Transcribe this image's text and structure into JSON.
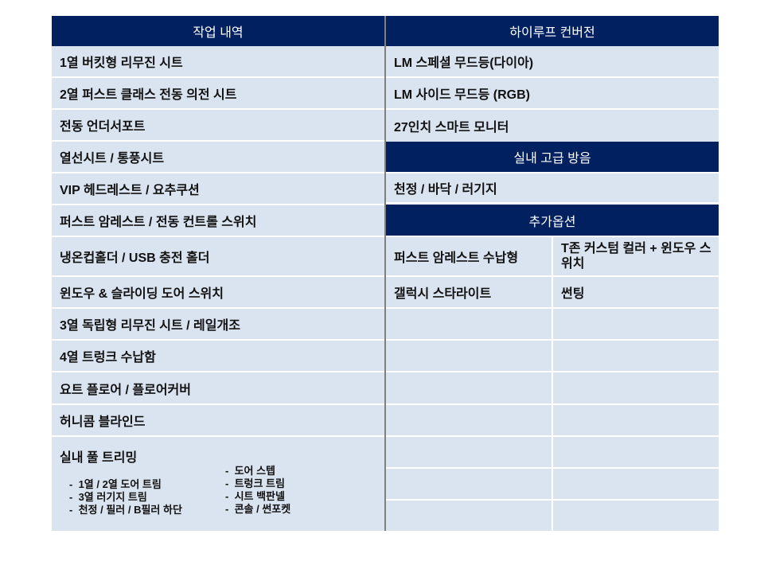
{
  "left": {
    "header": "작업 내역",
    "items": [
      "1열 버킷형 리무진 시트",
      "2열 퍼스트 클래스 전동 의전 시트",
      "전동 언더서포트",
      "열선시트 / 통풍시트",
      "VIP 헤드레스트 / 요추쿠션",
      "퍼스트 암레스트 / 전동 컨트롤 스위치",
      "냉온컵홀더 / USB 충전 홀더",
      "윈도우 & 슬라이딩 도어 스위치",
      "3열 독립형 리무진 시트 / 레일개조",
      "4열 트렁크 수납함",
      "요트 플로어 / 플로어커버",
      "허니콤 블라인드"
    ],
    "trim": {
      "title": "실내 풀 트리밍",
      "col1": [
        "1열 / 2열 도어 트림",
        "3열 러기지 트림",
        "천정 / 필러 / B필러 하단"
      ],
      "col2": [
        "도어 스텝",
        "트렁크 트림",
        "시트 백판넬",
        "콘솔 / 썬포켓"
      ]
    }
  },
  "right": {
    "sections": [
      {
        "header": "하이루프 컨버전",
        "items": [
          "LM 스페셜 무드등(다이아)",
          "LM 사이드 무드등 (RGB)",
          "27인치 스마트 모니터"
        ]
      },
      {
        "header": "실내 고급 방음",
        "items": [
          "천정 / 바닥 / 러기지"
        ]
      },
      {
        "header": "추가옵션",
        "rows": [
          [
            "퍼스트 암레스트 수납형",
            "T존 커스텀 컬러 + 윈도우 스위치"
          ],
          [
            "갤럭시 스타라이트",
            "썬팅"
          ]
        ]
      }
    ]
  },
  "colors": {
    "header": "#002060",
    "cell": "#dae3f0"
  }
}
